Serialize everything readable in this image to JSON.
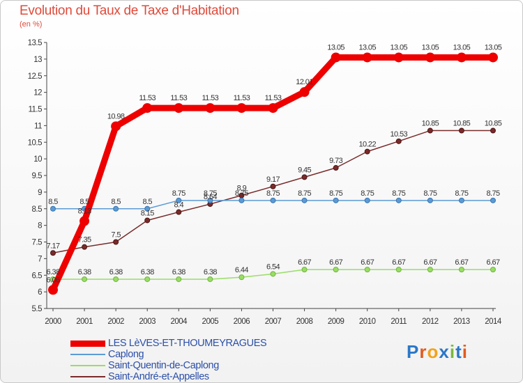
{
  "title": "Evolution du Taux de Taxe d'Habitation",
  "unit": "(en %)",
  "logo_text": "Proxiti",
  "chart_data": {
    "type": "line",
    "title": "Evolution du Taux de Taxe d'Habitation",
    "ylabel": "(en %)",
    "xlabel": "",
    "ylim": [
      5.5,
      13.5
    ],
    "yticks": [
      "5.5",
      "6",
      "6.5",
      "7",
      "7.5",
      "8",
      "8.5",
      "9",
      "9.5",
      "10",
      "10.5",
      "11",
      "11.5",
      "12",
      "12.5",
      "13",
      "13.5"
    ],
    "x": [
      "2000",
      "2001",
      "2002",
      "2003",
      "2004",
      "2005",
      "2006",
      "2007",
      "2008",
      "2009",
      "2010",
      "2011",
      "2012",
      "2013",
      "2014"
    ],
    "grid": false,
    "legend": "bottom-left",
    "series": [
      {
        "name": "LES LèVES-ET-THOUMEYRAGUES",
        "color": "#ee0000",
        "values": [
          6.06,
          8.13,
          10.98,
          11.53,
          11.53,
          11.53,
          11.53,
          11.53,
          12.01,
          13.05,
          13.05,
          13.05,
          13.05,
          13.05,
          13.05
        ],
        "labels": [
          "6.06",
          "8.13",
          "10.98",
          "11.53",
          "11.53",
          "11.53",
          "11.53",
          "11.53",
          "12.01",
          "13.05",
          "13.05",
          "13.05",
          "13.05",
          "13.05",
          "13.05"
        ]
      },
      {
        "name": "Caplong",
        "color": "#5b9bd5",
        "values": [
          8.5,
          8.5,
          8.5,
          8.5,
          8.75,
          8.75,
          8.75,
          8.75,
          8.75,
          8.75,
          8.75,
          8.75,
          8.75,
          8.75,
          8.75
        ],
        "labels": [
          "8.5",
          "8.5",
          "8.5",
          "8.5",
          "8.75",
          "8.75",
          "8.75",
          "8.75",
          "8.75",
          "8.75",
          "8.75",
          "8.75",
          "8.75",
          "8.75",
          "8.75"
        ]
      },
      {
        "name": "Saint-Quentin-de-Caplong",
        "color": "#99dd66",
        "values": [
          6.38,
          6.38,
          6.38,
          6.38,
          6.38,
          6.38,
          6.44,
          6.54,
          6.67,
          6.67,
          6.67,
          6.67,
          6.67,
          6.67,
          6.67
        ],
        "labels": [
          "6.38",
          "6.38",
          "6.38",
          "6.38",
          "6.38",
          "6.38",
          "6.44",
          "6.54",
          "6.67",
          "6.67",
          "6.67",
          "6.67",
          "6.67",
          "6.67",
          "6.67"
        ]
      },
      {
        "name": "Saint-André-et-Appelles",
        "color": "#7a2a2a",
        "values": [
          7.17,
          7.35,
          7.5,
          8.15,
          8.4,
          8.64,
          8.9,
          9.17,
          9.45,
          9.73,
          10.22,
          10.53,
          10.85,
          10.85,
          10.85
        ],
        "labels": [
          "7.17",
          "7.35",
          "7.5",
          "8.15",
          "8.4",
          "8.64",
          "8.9",
          "9.17",
          "9.45",
          "9.73",
          "10.22",
          "10.53",
          "10.85",
          "10.85",
          "10.85"
        ]
      }
    ]
  }
}
